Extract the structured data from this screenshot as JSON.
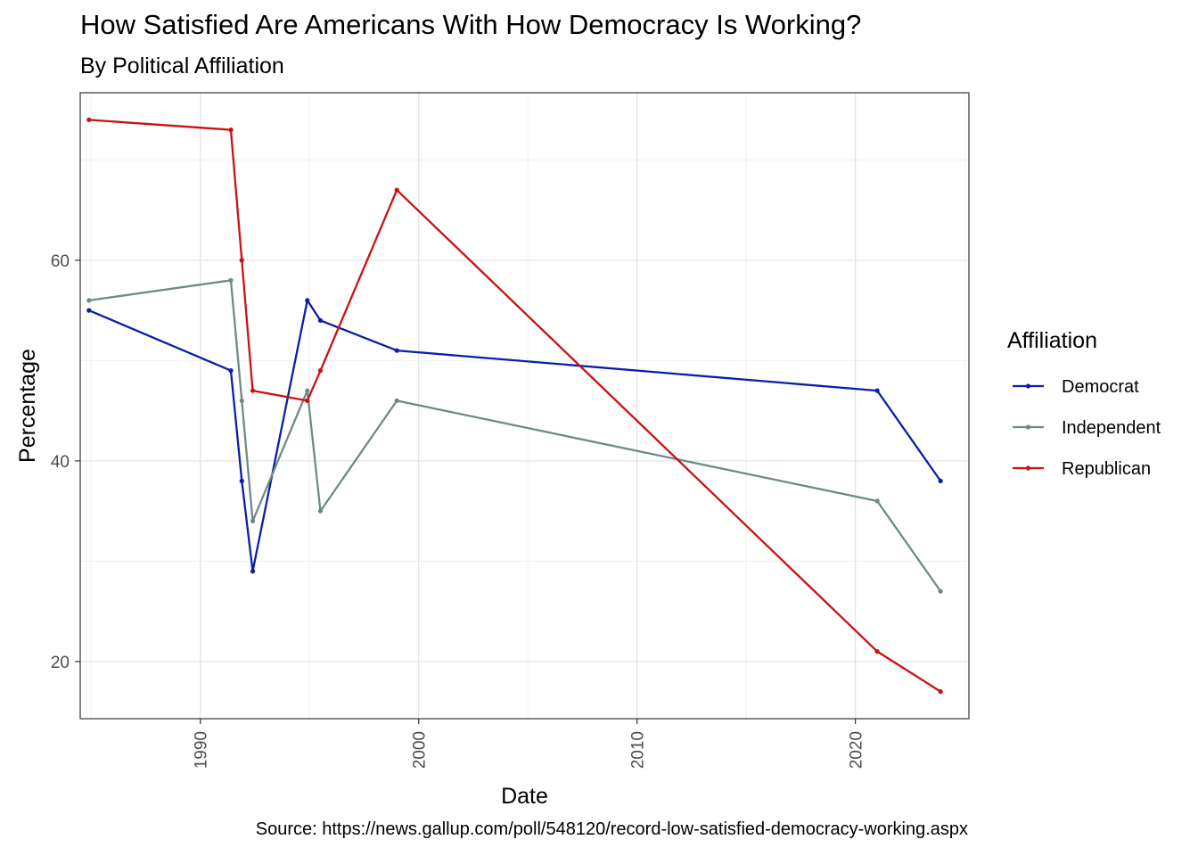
{
  "chart_data": {
    "type": "line",
    "title": "How Satisfied Are Americans With How Democracy Is Working?",
    "subtitle": "By Political Affiliation",
    "caption": "Source: https://news.gallup.com/poll/548120/record-low-satisfied-democracy-working.aspx",
    "xlabel": "Date",
    "ylabel": "Percentage",
    "xlim": [
      1984.5,
      2025.2
    ],
    "ylim": [
      14.3,
      76.7
    ],
    "xticks": [
      1990,
      2000,
      2010,
      2020
    ],
    "yticks": [
      20,
      40,
      60
    ],
    "grid": true,
    "legend": {
      "title": "Affiliation",
      "position": "right"
    },
    "series": [
      {
        "name": "Democrat",
        "color": "#0a1fa6",
        "x": [
          1984.9,
          1991.4,
          1991.9,
          1992.4,
          1994.9,
          1995.5,
          1999.0,
          2021.0,
          2023.9
        ],
        "y": [
          55,
          49,
          38,
          29,
          56,
          54,
          51,
          47,
          38
        ]
      },
      {
        "name": "Independent",
        "color": "#6e8a88",
        "x": [
          1984.9,
          1991.4,
          1991.9,
          1992.4,
          1994.9,
          1995.5,
          1999.0,
          2021.0,
          2023.9
        ],
        "y": [
          56,
          58,
          46,
          34,
          47,
          35,
          46,
          36,
          27
        ]
      },
      {
        "name": "Republican",
        "color": "#cc1111",
        "x": [
          1984.9,
          1991.4,
          1991.9,
          1992.4,
          1994.9,
          1995.5,
          1999.0,
          2021.0,
          2023.9
        ],
        "y": [
          74,
          73,
          60,
          47,
          46,
          49,
          67,
          21,
          17
        ]
      }
    ]
  }
}
